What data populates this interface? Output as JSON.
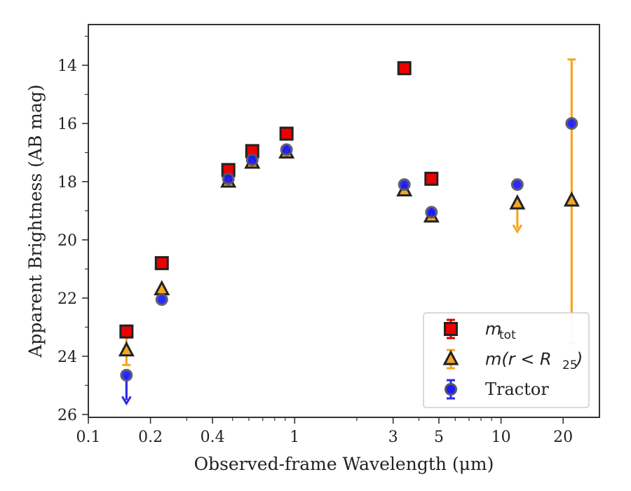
{
  "chart_data": {
    "type": "scatter",
    "xlabel": "Observed-frame Wavelength (μm)",
    "ylabel": "Apparent Brightness (AB mag)",
    "x_scale": "log",
    "xlim": [
      0.1,
      30
    ],
    "ylim": [
      26.1,
      12.6
    ],
    "y_inverted": true,
    "x_ticks": [
      0.1,
      0.2,
      0.4,
      1,
      3,
      5,
      10,
      20
    ],
    "x_tick_labels": [
      "0.1",
      "0.2",
      "0.4",
      "1",
      "3",
      "5",
      "10",
      "20"
    ],
    "y_ticks": [
      14,
      16,
      18,
      20,
      22,
      24,
      26
    ],
    "y_tick_labels": [
      "14",
      "16",
      "18",
      "20",
      "22",
      "24",
      "26"
    ],
    "legend_position": "lower-right",
    "colors": {
      "m_tot_fill": "#ee0000",
      "m_r25_fill": "#f5a623",
      "m_r25_err": "#f5a623",
      "tractor_fill": "#1a1aff",
      "tractor_err": "#2a2aee",
      "marker_edge": "#222222",
      "frame": "#333333"
    },
    "series": [
      {
        "name": "m_tot",
        "legend_label": "m",
        "legend_subscript": "tot",
        "marker": "square",
        "points": [
          {
            "x": 0.153,
            "y": 23.15
          },
          {
            "x": 0.227,
            "y": 20.8
          },
          {
            "x": 0.477,
            "y": 17.6
          },
          {
            "x": 0.623,
            "y": 16.95
          },
          {
            "x": 0.913,
            "y": 16.35
          },
          {
            "x": 3.4,
            "y": 14.1
          },
          {
            "x": 4.6,
            "y": 17.9
          }
        ]
      },
      {
        "name": "m(r < R25)",
        "legend_label": "m(r < R",
        "legend_subscript": "25",
        "legend_suffix": ")",
        "marker": "triangle",
        "points": [
          {
            "x": 0.153,
            "y": 23.8,
            "yerr": 0.5
          },
          {
            "x": 0.227,
            "y": 21.7
          },
          {
            "x": 0.477,
            "y": 18.0
          },
          {
            "x": 0.623,
            "y": 17.35
          },
          {
            "x": 0.913,
            "y": 17.0
          },
          {
            "x": 3.4,
            "y": 18.3
          },
          {
            "x": 4.6,
            "y": 19.2
          },
          {
            "x": 12.0,
            "y": 18.75,
            "upper_limit_to": 19.7
          },
          {
            "x": 22.0,
            "y": 18.65,
            "y_low": 13.8,
            "y_high": 23.55
          }
        ]
      },
      {
        "name": "Tractor",
        "legend_label": "Tractor",
        "marker": "circle",
        "points": [
          {
            "x": 0.153,
            "y": 24.65,
            "upper_limit_to": 25.6
          },
          {
            "x": 0.227,
            "y": 22.05
          },
          {
            "x": 0.477,
            "y": 17.9
          },
          {
            "x": 0.623,
            "y": 17.25
          },
          {
            "x": 0.913,
            "y": 16.9
          },
          {
            "x": 3.4,
            "y": 18.1
          },
          {
            "x": 4.6,
            "y": 19.05
          },
          {
            "x": 12.0,
            "y": 18.1
          },
          {
            "x": 22.0,
            "y": 16.0
          }
        ]
      }
    ]
  }
}
